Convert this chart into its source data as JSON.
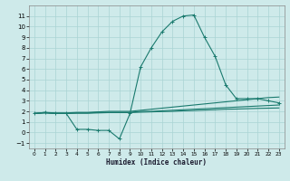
{
  "title": "",
  "xlabel": "Humidex (Indice chaleur)",
  "background_color": "#ceeaea",
  "grid_color": "#aad4d4",
  "line_color": "#1a7a6e",
  "xlim": [
    -0.5,
    23.5
  ],
  "ylim": [
    -1.5,
    12.0
  ],
  "xticks": [
    0,
    1,
    2,
    3,
    4,
    5,
    6,
    7,
    8,
    9,
    10,
    11,
    12,
    13,
    14,
    15,
    16,
    17,
    18,
    19,
    20,
    21,
    22,
    23
  ],
  "yticks": [
    -1,
    0,
    1,
    2,
    3,
    4,
    5,
    6,
    7,
    8,
    9,
    10,
    11
  ],
  "line1_x": [
    0,
    1,
    2,
    3,
    4,
    5,
    6,
    7,
    8,
    9,
    10,
    11,
    12,
    13,
    14,
    15,
    16,
    17,
    18,
    19,
    20,
    21,
    22,
    23
  ],
  "line1_y": [
    1.8,
    1.9,
    1.8,
    1.8,
    0.3,
    0.3,
    0.2,
    0.2,
    -0.6,
    1.8,
    6.2,
    8.0,
    9.5,
    10.5,
    11.0,
    11.1,
    9.0,
    7.2,
    4.5,
    3.2,
    3.2,
    3.2,
    3.0,
    2.8
  ],
  "line2_x": [
    0,
    1,
    2,
    3,
    4,
    5,
    6,
    7,
    8,
    9,
    10,
    11,
    12,
    13,
    14,
    15,
    16,
    17,
    18,
    19,
    20,
    21,
    22,
    23
  ],
  "line2_y": [
    1.8,
    1.9,
    1.85,
    1.85,
    1.9,
    1.9,
    1.95,
    2.0,
    2.0,
    2.0,
    2.1,
    2.2,
    2.3,
    2.4,
    2.5,
    2.6,
    2.7,
    2.8,
    2.9,
    3.0,
    3.1,
    3.2,
    3.3,
    3.35
  ],
  "line3_x": [
    0,
    1,
    2,
    3,
    4,
    5,
    6,
    7,
    8,
    9,
    10,
    11,
    12,
    13,
    14,
    15,
    16,
    17,
    18,
    19,
    20,
    21,
    22,
    23
  ],
  "line3_y": [
    1.8,
    1.85,
    1.8,
    1.8,
    1.85,
    1.85,
    1.9,
    1.9,
    1.9,
    1.9,
    2.0,
    2.0,
    2.05,
    2.1,
    2.15,
    2.2,
    2.25,
    2.3,
    2.35,
    2.4,
    2.45,
    2.5,
    2.55,
    2.6
  ],
  "line4_x": [
    0,
    1,
    2,
    3,
    4,
    5,
    6,
    7,
    8,
    9,
    10,
    11,
    12,
    13,
    14,
    15,
    16,
    17,
    18,
    19,
    20,
    21,
    22,
    23
  ],
  "line4_y": [
    1.8,
    1.85,
    1.8,
    1.8,
    1.82,
    1.82,
    1.85,
    1.88,
    1.88,
    1.88,
    1.92,
    1.95,
    1.98,
    2.0,
    2.05,
    2.08,
    2.12,
    2.15,
    2.2,
    2.22,
    2.25,
    2.28,
    2.3,
    2.32
  ]
}
